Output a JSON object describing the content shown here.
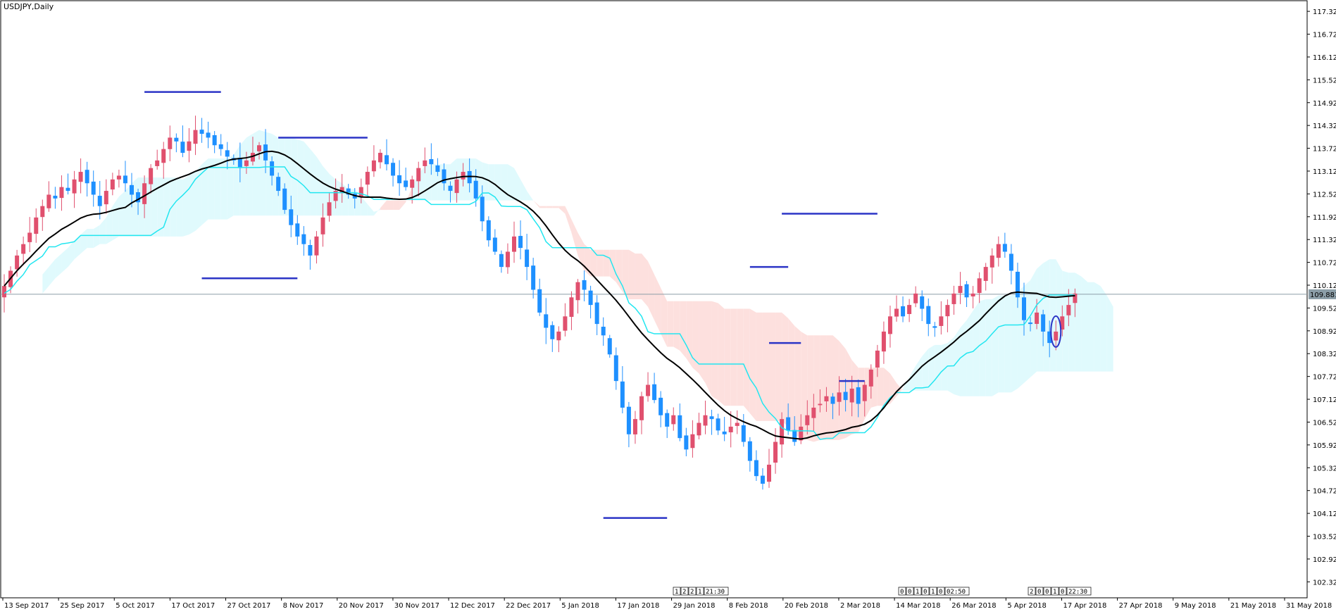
{
  "chart_title": "USDJPY,Daily",
  "current_price_label": "109.881",
  "colors": {
    "bull": "#e0506e",
    "bear": "#1e90ff",
    "sma": "#000000",
    "kijun": "#22e6f0",
    "cloud_bear": "#fde0de",
    "cloud_bull": "#e0fafd",
    "drawings": "#2b34c6",
    "price_line": "#8c9ea8"
  },
  "chart_data": {
    "type": "candlestick",
    "symbol": "USDJPY",
    "timeframe": "Daily",
    "ylim": [
      101.9,
      117.6
    ],
    "yticks": [
      "117.320",
      "116.720",
      "116.120",
      "115.520",
      "114.920",
      "114.320",
      "113.720",
      "113.120",
      "112.520",
      "111.920",
      "111.320",
      "110.720",
      "110.120",
      "109.520",
      "108.920",
      "108.320",
      "107.720",
      "107.120",
      "106.520",
      "105.920",
      "105.320",
      "104.720",
      "104.120",
      "103.520",
      "102.920",
      "102.320"
    ],
    "xticks": [
      "13 Sep 2017",
      "25 Sep 2017",
      "5 Oct 2017",
      "17 Oct 2017",
      "27 Oct 2017",
      "8 Nov 2017",
      "20 Nov 2017",
      "30 Nov 2017",
      "12 Dec 2017",
      "22 Dec 2017",
      "5 Jan 2018",
      "17 Jan 2018",
      "29 Jan 2018",
      "8 Feb 2018",
      "20 Feb 2018",
      "2 Mar 2018",
      "14 Mar 2018",
      "26 Mar 2018",
      "5 Apr 2018",
      "17 Apr 2018",
      "27 Apr 2018",
      "9 May 2018",
      "21 May 2018",
      "31 May 2018"
    ],
    "current_price": 109.881,
    "closes": [
      110.1,
      110.5,
      110.9,
      111.2,
      111.5,
      111.9,
      112.2,
      112.5,
      112.4,
      112.7,
      112.6,
      112.9,
      113.1,
      112.8,
      112.5,
      112.2,
      112.6,
      112.9,
      113.0,
      112.8,
      112.5,
      112.3,
      112.8,
      113.2,
      113.4,
      113.7,
      114.0,
      113.9,
      113.6,
      113.9,
      114.2,
      114.1,
      114.0,
      113.8,
      113.7,
      113.5,
      113.4,
      113.2,
      113.4,
      113.6,
      113.8,
      113.4,
      113.0,
      112.6,
      112.1,
      111.7,
      111.4,
      111.2,
      110.9,
      111.4,
      111.9,
      112.3,
      112.6,
      112.7,
      112.5,
      112.4,
      112.7,
      113.1,
      113.4,
      113.6,
      113.3,
      113.0,
      112.8,
      112.7,
      112.9,
      113.2,
      113.4,
      113.3,
      113.1,
      112.8,
      112.6,
      112.9,
      113.1,
      112.8,
      112.4,
      111.8,
      111.3,
      111.0,
      110.6,
      111.0,
      111.4,
      111.1,
      110.6,
      110.0,
      109.4,
      109.0,
      108.7,
      108.9,
      109.3,
      109.8,
      110.2,
      110.0,
      109.6,
      109.1,
      108.8,
      108.3,
      107.6,
      106.9,
      106.2,
      106.6,
      107.2,
      107.5,
      107.1,
      106.7,
      106.4,
      106.7,
      106.1,
      105.8,
      106.2,
      106.5,
      106.7,
      106.6,
      106.3,
      106.2,
      106.4,
      106.5,
      106.0,
      105.5,
      105.1,
      104.9,
      105.4,
      106.0,
      106.6,
      106.3,
      106.0,
      106.4,
      106.7,
      106.9,
      107.0,
      107.2,
      107.0,
      107.3,
      107.1,
      107.4,
      107.0,
      107.5,
      107.9,
      108.4,
      108.9,
      109.3,
      109.5,
      109.3,
      109.6,
      109.9,
      109.5,
      109.1,
      109.0,
      109.3,
      109.6,
      109.9,
      110.1,
      109.8,
      109.9,
      110.3,
      110.6,
      110.9,
      111.2,
      111.0,
      110.5,
      109.8,
      109.2,
      109.1,
      109.4,
      108.9,
      108.6,
      108.9,
      109.3,
      109.6,
      109.9
    ]
  },
  "annotations": {
    "time_boxes": [
      "1",
      "2",
      "2",
      "1",
      "21:30",
      "0",
      "0",
      "1",
      "0",
      "1",
      "0",
      "02:50",
      "2",
      "0",
      "0",
      "1",
      "0",
      "22:30"
    ]
  }
}
